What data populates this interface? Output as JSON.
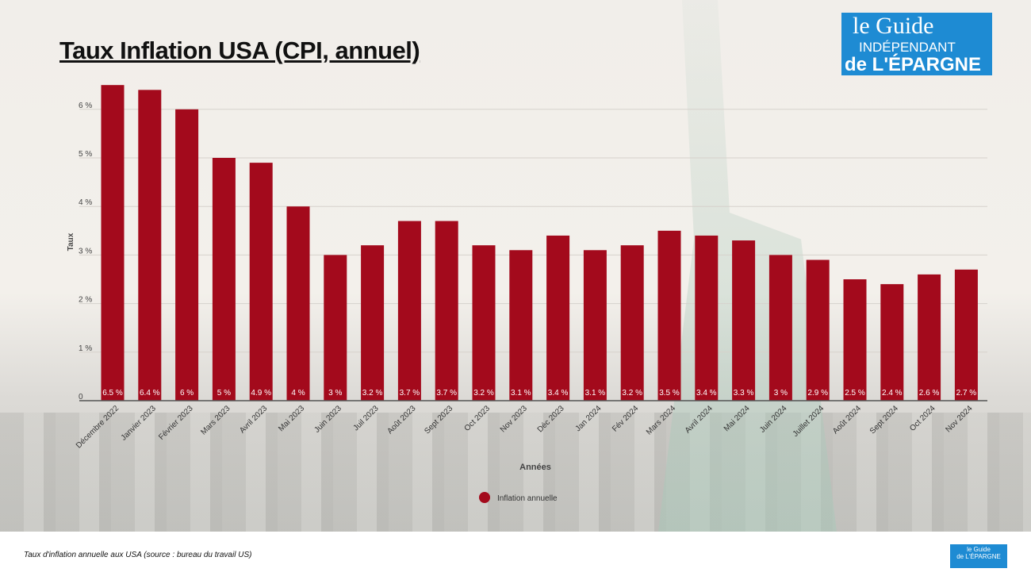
{
  "title": "Taux Inflation USA (CPI, annuel)",
  "logo": {
    "line1": "le Guide",
    "line2": "INDÉPENDANT",
    "line3": "de L'ÉPARGNE",
    "brand_color": "#1e8bd3"
  },
  "footer_note": "Taux d'inflation annuelle aux USA (source : bureau du travail US)",
  "chart_data": {
    "type": "bar",
    "title": "",
    "xlabel": "Années",
    "ylabel": "Taux",
    "ylim": [
      0,
      6.5
    ],
    "yticks": [
      0,
      1,
      2,
      3,
      4,
      5,
      6
    ],
    "ytick_labels": [
      "0",
      "1 %",
      "2 %",
      "3 %",
      "4 %",
      "5 %",
      "6 %"
    ],
    "grid": true,
    "legend_position": "bottom",
    "bar_color": "#a30a1c",
    "categories": [
      "Décembre 2022",
      "Janvier 2023",
      "Février 2023",
      "Mars 2023",
      "Avril 2023",
      "Mai 2023",
      "Juin 2023",
      "Juil 2023",
      "Août 2023",
      "Sept 2023",
      "Oct 2023",
      "Nov 2023",
      "Déc 2023",
      "Jan 2024",
      "Fév 2024",
      "Mars 2024",
      "Avril 2024",
      "Mai 2024",
      "Juin 2024",
      "Juillet 2024",
      "Août 2024",
      "Sept 2024",
      "Oct 2024",
      "Nov 2024"
    ],
    "series": [
      {
        "name": "Inflation annuelle",
        "values": [
          6.5,
          6.4,
          6,
          5,
          4.9,
          4,
          3,
          3.2,
          3.7,
          3.7,
          3.2,
          3.1,
          3.4,
          3.1,
          3.2,
          3.5,
          3.4,
          3.3,
          3,
          2.9,
          2.5,
          2.4,
          2.6,
          2.7
        ]
      }
    ],
    "data_labels": [
      "6.5 %",
      "6.4 %",
      "6 %",
      "5 %",
      "4.9 %",
      "4 %",
      "3 %",
      "3.2 %",
      "3.7 %",
      "3.7 %",
      "3.2 %",
      "3.1 %",
      "3.4 %",
      "3.1 %",
      "3.2 %",
      "3.5 %",
      "3.4 %",
      "3.3 %",
      "3 %",
      "2.9 %",
      "2.5 %",
      "2.4 %",
      "2.6 %",
      "2.7 %"
    ]
  }
}
